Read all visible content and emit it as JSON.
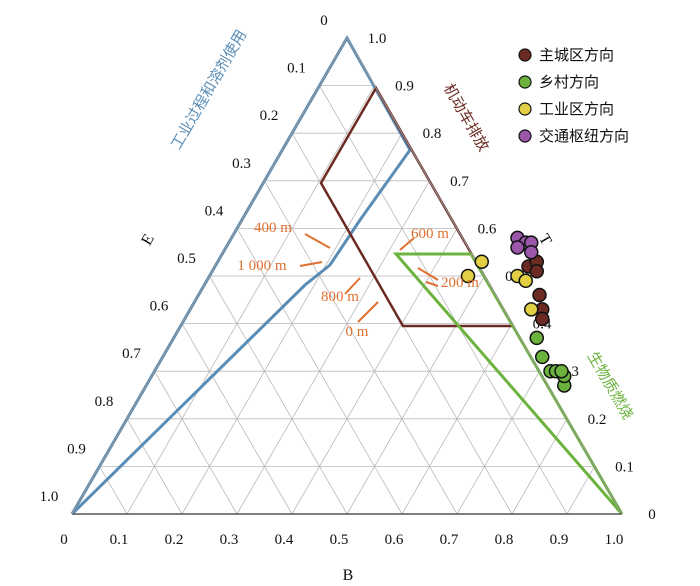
{
  "chart_data": {
    "type": "scatter",
    "subtype": "ternary",
    "axes": {
      "bottom": {
        "label": "B",
        "ticks": [
          "0",
          "0.1",
          "0.2",
          "0.3",
          "0.4",
          "0.5",
          "0.6",
          "0.7",
          "0.8",
          "0.9",
          "1.0"
        ]
      },
      "left": {
        "label": "E",
        "ticks": [
          "0",
          "0.1",
          "0.2",
          "0.3",
          "0.4",
          "0.5",
          "0.6",
          "0.7",
          "0.8",
          "0.9",
          "1.0"
        ]
      },
      "right": {
        "label": "T",
        "ticks": [
          "1.0",
          "0.9",
          "0.8",
          "0.7",
          "0.6",
          "0.5",
          "0.4",
          "0.3",
          "0.2",
          "0.1",
          "0"
        ]
      }
    },
    "grid": true,
    "legend_position": "top-right",
    "series": [
      {
        "name": "主城区方向",
        "color": "#6b2a22",
        "points": [
          [
            0.62,
            0.46
          ],
          [
            0.64,
            0.43
          ],
          [
            0.65,
            0.41
          ],
          [
            0.57,
            0.52
          ],
          [
            0.58,
            0.53
          ],
          [
            0.59,
            0.51
          ]
        ]
      },
      {
        "name": "乡村方向",
        "color": "#6cb33e",
        "points": [
          [
            0.66,
            0.37
          ],
          [
            0.69,
            0.33
          ],
          [
            0.72,
            0.3
          ],
          [
            0.73,
            0.3
          ],
          [
            0.76,
            0.27
          ],
          [
            0.75,
            0.29
          ],
          [
            0.74,
            0.3
          ]
        ]
      },
      {
        "name": "工业区方向",
        "color": "#e2cf43",
        "points": [
          [
            0.47,
            0.5
          ],
          [
            0.48,
            0.53
          ],
          [
            0.56,
            0.5
          ],
          [
            0.58,
            0.49
          ],
          [
            0.62,
            0.43
          ]
        ]
      },
      {
        "name": "交通枢纽方向",
        "color": "#9a56a8",
        "points": [
          [
            0.52,
            0.58
          ],
          [
            0.54,
            0.57
          ],
          [
            0.55,
            0.57
          ],
          [
            0.53,
            0.56
          ],
          [
            0.56,
            0.55
          ]
        ]
      }
    ],
    "regions": [
      {
        "name": "机动车排放",
        "color": "#6b2a22"
      },
      {
        "name": "生物质燃烧",
        "color": "#6cb33e"
      },
      {
        "name": "工业过程和溶剂使用",
        "color": "#5a8db6"
      }
    ],
    "distance_labels": [
      "400 m",
      "1 000 m",
      "800 m",
      "0 m",
      "600 m",
      "200 m"
    ]
  },
  "legend": {
    "items": [
      {
        "label": "主城区方向",
        "color": "#6b2a22"
      },
      {
        "label": "乡村方向",
        "color": "#6cb33e"
      },
      {
        "label": "工业区方向",
        "color": "#e2cf43"
      },
      {
        "label": "交通枢纽方向",
        "color": "#9a56a8"
      }
    ]
  }
}
